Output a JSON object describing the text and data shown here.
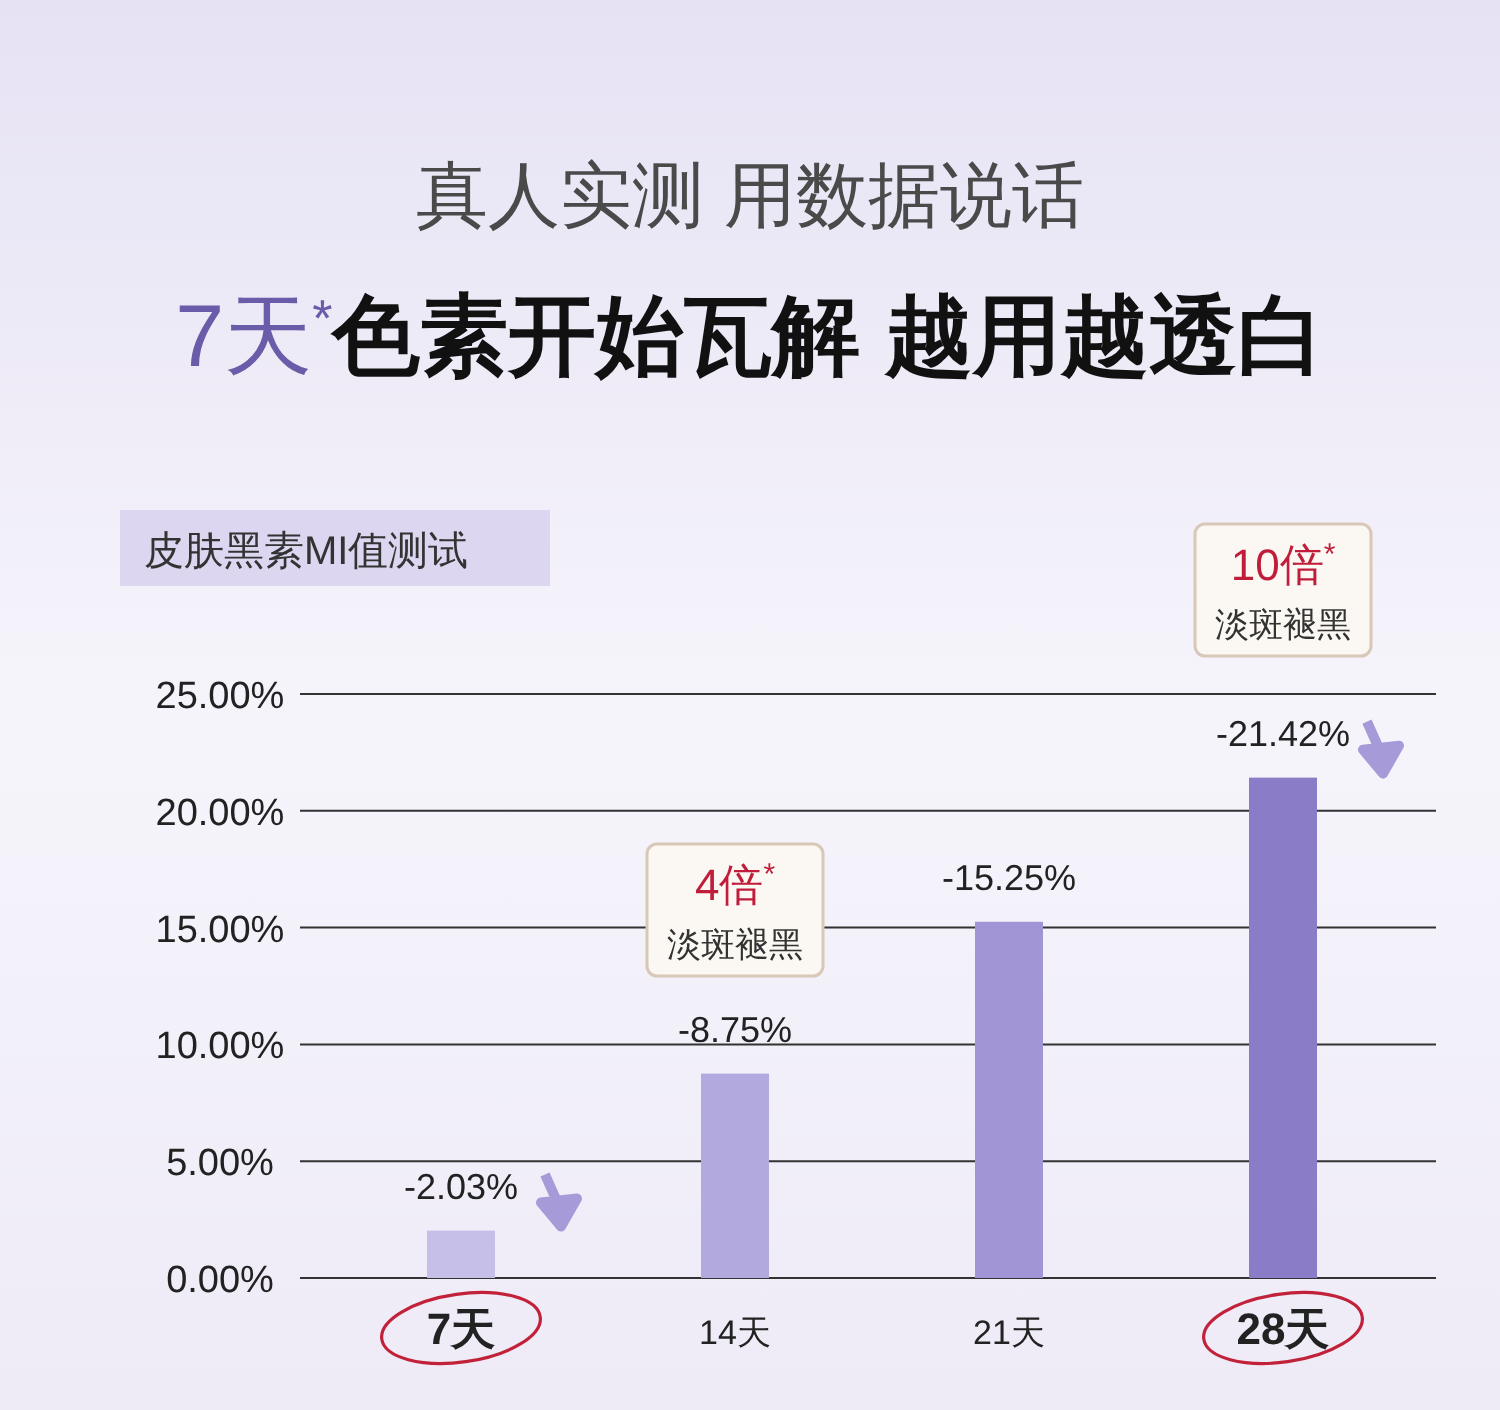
{
  "chart_data": {
    "type": "bar",
    "title": "真人实测 用数据说话",
    "subtitle": "7天$^{*}$色素开始瓦解 越用越透白",
    "categories": [
      "7天",
      "14天",
      "21天",
      "28天"
    ],
    "values": [
      2.03,
      8.75,
      15.25,
      21.42
    ],
    "colors": [
      "#c6bfe8",
      "#b2a9df",
      "#a195d6",
      "#8a7cc6"
    ],
    "ylim": [
      0,
      25
    ],
    "yticks": [
      {
        "value": 0,
        "label": "0.00%"
      },
      {
        "value": 5,
        "label": "5.00%"
      },
      {
        "value": 10,
        "label": "10.00%"
      },
      {
        "value": 15,
        "label": "15.00%"
      },
      {
        "value": 20,
        "label": "20.00%"
      },
      {
        "value": 25,
        "label": "25.00%"
      }
    ],
    "grid": "y",
    "annotations": [
      "皮肤黑素MI值测试",
      "4倍$^{*}$ 淡斑褪黑",
      "10倍$^{*}$ 淡斑褪黑",
      {
        "text": "-2.03%",
        "x": "7天",
        "y": 2.03
      },
      {
        "text": "-8.75%",
        "x": "14天",
        "y": 8.75
      },
      {
        "text": "-15.25%",
        "x": "21天",
        "y": 15.25
      },
      {
        "text": "-21.42%",
        "x": "28天",
        "y": 21.42
      }
    ]
  }
}
